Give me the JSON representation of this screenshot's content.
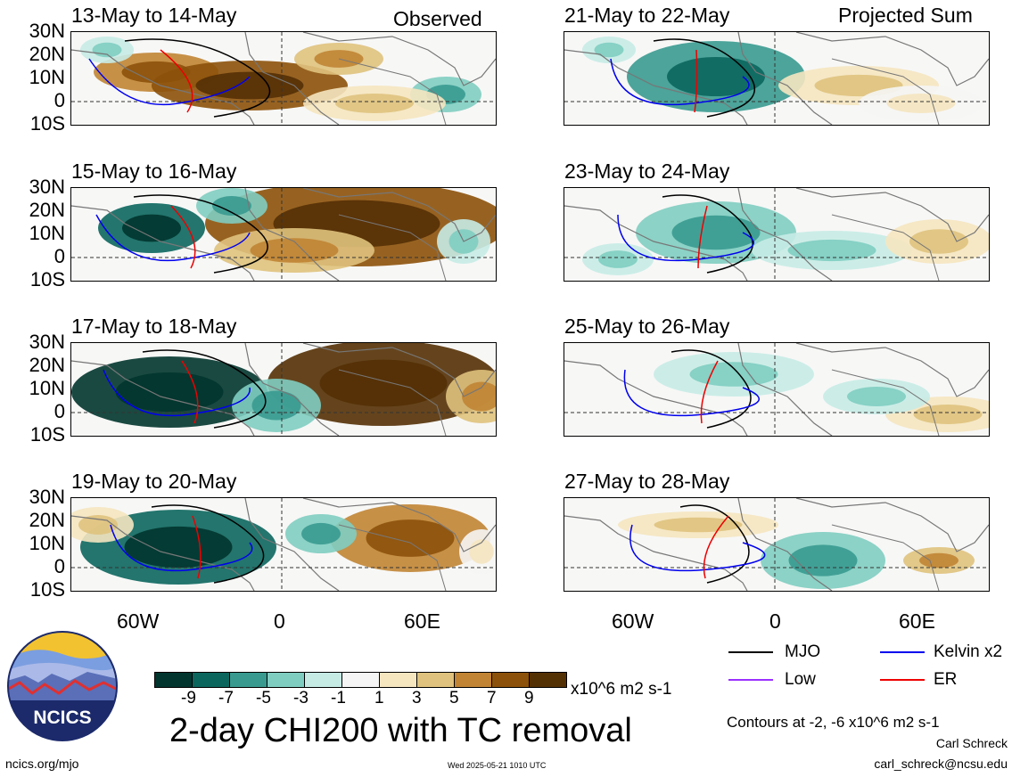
{
  "panels_left": [
    {
      "title": "13-May to 14-May",
      "tag": "Observed"
    },
    {
      "title": "15-May to 16-May",
      "tag": ""
    },
    {
      "title": "17-May to 18-May",
      "tag": ""
    },
    {
      "title": "19-May to 20-May",
      "tag": ""
    }
  ],
  "panels_right": [
    {
      "title": "21-May to 22-May",
      "tag": "Projected Sum"
    },
    {
      "title": "23-May to 24-May",
      "tag": ""
    },
    {
      "title": "25-May to 26-May",
      "tag": ""
    },
    {
      "title": "27-May to 28-May",
      "tag": ""
    }
  ],
  "lat_labels": [
    "30N",
    "20N",
    "10N",
    "0",
    "10S"
  ],
  "lon_labels": [
    "60W",
    "0",
    "60E"
  ],
  "legend": {
    "mjo": "MJO",
    "low": "Low",
    "kelvin": "Kelvin x2",
    "er": "ER",
    "colors": {
      "mjo": "#000000",
      "low": "#9b30ff",
      "kelvin": "#0000ee",
      "er": "#ee0000"
    }
  },
  "colorbar": {
    "colors": [
      "#01352e",
      "#0b665e",
      "#399a90",
      "#7fcdc1",
      "#c6ebe5",
      "#f5f5f5",
      "#f5e6c0",
      "#dfc27d",
      "#c08434",
      "#8c510a",
      "#543005"
    ],
    "ticks": [
      "-9",
      "-7",
      "-5",
      "-3",
      "-1",
      "1",
      "3",
      "5",
      "7",
      "9"
    ],
    "units": "x10^6 m2 s-1"
  },
  "main_title": "2-day CHI200 with TC removal",
  "contour_note": "Contours at -2, -6 x10^6 m2 s-1",
  "author": "Carl Schreck",
  "email": "carl_schreck@ncsu.edu",
  "site": "ncics.org/mjo",
  "timestamp": "Wed 2025-05-21 1010 UTC",
  "logo_text": "NCICS"
}
